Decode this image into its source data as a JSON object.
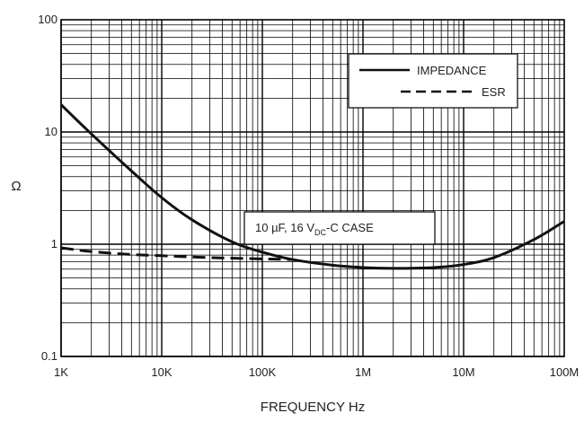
{
  "chart_data": {
    "type": "line",
    "xscale": "log",
    "yscale": "log",
    "xlim": [
      1000,
      100000000
    ],
    "ylim": [
      0.1,
      100
    ],
    "xlabel": "FREQUENCY Hz",
    "ylabel": "Ω",
    "grid": true,
    "x_ticks": [
      {
        "value": 1000,
        "label": "1K"
      },
      {
        "value": 10000,
        "label": "10K"
      },
      {
        "value": 100000,
        "label": "100K"
      },
      {
        "value": 1000000,
        "label": "1M"
      },
      {
        "value": 10000000,
        "label": "10M"
      },
      {
        "value": 100000000,
        "label": "100M"
      }
    ],
    "y_ticks": [
      {
        "value": 0.1,
        "label": "0.1"
      },
      {
        "value": 1,
        "label": "1"
      },
      {
        "value": 10,
        "label": "10"
      },
      {
        "value": 100,
        "label": "100"
      }
    ],
    "legend": {
      "position": "top-right",
      "entries": [
        {
          "name": "IMPEDANCE",
          "style": "solid"
        },
        {
          "name": "ESR",
          "style": "dashed"
        }
      ]
    },
    "annotation": {
      "prefix": "10 µF, 16 V",
      "subscript": "DC",
      "suffix": "-C CASE"
    },
    "series": [
      {
        "name": "IMPEDANCE",
        "style": "solid",
        "x": [
          1000,
          2000,
          5000,
          10000,
          20000,
          50000,
          100000,
          200000,
          500000,
          1000000,
          2000000,
          5000000,
          10000000,
          20000000,
          50000000,
          100000000
        ],
        "y": [
          17.5,
          9.6,
          4.5,
          2.6,
          1.65,
          1.05,
          0.85,
          0.73,
          0.65,
          0.62,
          0.61,
          0.62,
          0.66,
          0.76,
          1.1,
          1.6
        ]
      },
      {
        "name": "ESR",
        "style": "dashed",
        "x": [
          1000,
          2000,
          5000,
          10000,
          30000,
          100000,
          200000
        ],
        "y": [
          0.93,
          0.86,
          0.81,
          0.79,
          0.76,
          0.74,
          0.73
        ]
      }
    ]
  },
  "colors": {
    "line": "#111111",
    "grid": "#000000",
    "background": "#ffffff"
  }
}
